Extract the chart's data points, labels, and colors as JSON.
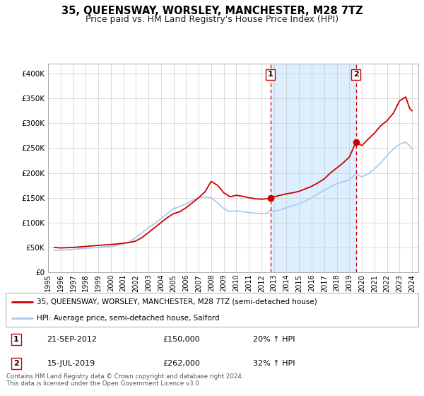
{
  "title": "35, QUEENSWAY, WORSLEY, MANCHESTER, M28 7TZ",
  "subtitle": "Price paid vs. HM Land Registry's House Price Index (HPI)",
  "legend_line1": "35, QUEENSWAY, WORSLEY, MANCHESTER, M28 7TZ (semi-detached house)",
  "legend_line2": "HPI: Average price, semi-detached house, Salford",
  "marker1_date": 2012.72,
  "marker1_price": 150000,
  "marker1_label": "1",
  "marker1_text": "21-SEP-2012",
  "marker1_val": "£150,000",
  "marker1_hpi": "20% ↑ HPI",
  "marker2_date": 2019.53,
  "marker2_price": 262000,
  "marker2_label": "2",
  "marker2_text": "15-JUL-2019",
  "marker2_val": "£262,000",
  "marker2_hpi": "32% ↑ HPI",
  "color_red": "#cc0000",
  "color_blue": "#aaccee",
  "color_blue_fill": "#ddeeff",
  "color_grid": "#cccccc",
  "background_color": "#ffffff",
  "ylim_max": 420000,
  "footer_text": "Contains HM Land Registry data © Crown copyright and database right 2024.\nThis data is licensed under the Open Government Licence v3.0.",
  "red_line_data": [
    [
      1995.5,
      50000
    ],
    [
      1996.0,
      49000
    ],
    [
      1996.5,
      49500
    ],
    [
      1997.0,
      50000
    ],
    [
      1997.5,
      51000
    ],
    [
      1998.0,
      52000
    ],
    [
      1998.5,
      53000
    ],
    [
      1999.0,
      54000
    ],
    [
      1999.5,
      55000
    ],
    [
      2000.0,
      56000
    ],
    [
      2000.5,
      57000
    ],
    [
      2001.0,
      58500
    ],
    [
      2001.5,
      60000
    ],
    [
      2002.0,
      63000
    ],
    [
      2002.5,
      70000
    ],
    [
      2003.0,
      80000
    ],
    [
      2003.5,
      90000
    ],
    [
      2004.0,
      100000
    ],
    [
      2004.5,
      110000
    ],
    [
      2005.0,
      118000
    ],
    [
      2005.5,
      122000
    ],
    [
      2006.0,
      130000
    ],
    [
      2006.5,
      140000
    ],
    [
      2007.0,
      150000
    ],
    [
      2007.5,
      162000
    ],
    [
      2008.0,
      183000
    ],
    [
      2008.5,
      175000
    ],
    [
      2009.0,
      160000
    ],
    [
      2009.5,
      152000
    ],
    [
      2010.0,
      155000
    ],
    [
      2010.5,
      153000
    ],
    [
      2011.0,
      150000
    ],
    [
      2011.5,
      148000
    ],
    [
      2012.0,
      147000
    ],
    [
      2012.5,
      148000
    ],
    [
      2012.72,
      150000
    ],
    [
      2013.0,
      152000
    ],
    [
      2013.5,
      155000
    ],
    [
      2014.0,
      158000
    ],
    [
      2014.5,
      160000
    ],
    [
      2015.0,
      163000
    ],
    [
      2015.5,
      168000
    ],
    [
      2016.0,
      173000
    ],
    [
      2016.5,
      180000
    ],
    [
      2017.0,
      188000
    ],
    [
      2017.5,
      200000
    ],
    [
      2018.0,
      210000
    ],
    [
      2018.5,
      220000
    ],
    [
      2019.0,
      232000
    ],
    [
      2019.53,
      262000
    ],
    [
      2020.0,
      255000
    ],
    [
      2020.5,
      268000
    ],
    [
      2021.0,
      280000
    ],
    [
      2021.5,
      295000
    ],
    [
      2022.0,
      305000
    ],
    [
      2022.5,
      320000
    ],
    [
      2023.0,
      345000
    ],
    [
      2023.5,
      353000
    ],
    [
      2023.8,
      330000
    ],
    [
      2024.0,
      325000
    ]
  ],
  "blue_line_data": [
    [
      1995.5,
      44000
    ],
    [
      1996.0,
      44500
    ],
    [
      1996.5,
      45000
    ],
    [
      1997.0,
      46000
    ],
    [
      1997.5,
      47000
    ],
    [
      1998.0,
      48000
    ],
    [
      1998.5,
      49000
    ],
    [
      1999.0,
      50000
    ],
    [
      1999.5,
      51000
    ],
    [
      2000.0,
      52000
    ],
    [
      2000.5,
      54000
    ],
    [
      2001.0,
      57000
    ],
    [
      2001.5,
      62000
    ],
    [
      2002.0,
      70000
    ],
    [
      2002.5,
      80000
    ],
    [
      2003.0,
      90000
    ],
    [
      2003.5,
      98000
    ],
    [
      2004.0,
      108000
    ],
    [
      2004.5,
      118000
    ],
    [
      2005.0,
      128000
    ],
    [
      2005.5,
      132000
    ],
    [
      2006.0,
      138000
    ],
    [
      2006.5,
      145000
    ],
    [
      2007.0,
      150000
    ],
    [
      2007.5,
      152000
    ],
    [
      2008.0,
      150000
    ],
    [
      2008.5,
      140000
    ],
    [
      2009.0,
      128000
    ],
    [
      2009.5,
      122000
    ],
    [
      2010.0,
      124000
    ],
    [
      2010.5,
      122000
    ],
    [
      2011.0,
      120000
    ],
    [
      2011.5,
      119000
    ],
    [
      2012.0,
      118000
    ],
    [
      2012.5,
      119000
    ],
    [
      2012.72,
      125000
    ],
    [
      2013.0,
      122000
    ],
    [
      2013.5,
      126000
    ],
    [
      2014.0,
      130000
    ],
    [
      2014.5,
      134000
    ],
    [
      2015.0,
      138000
    ],
    [
      2015.5,
      143000
    ],
    [
      2016.0,
      150000
    ],
    [
      2016.5,
      158000
    ],
    [
      2017.0,
      165000
    ],
    [
      2017.5,
      172000
    ],
    [
      2018.0,
      178000
    ],
    [
      2018.5,
      182000
    ],
    [
      2019.0,
      186000
    ],
    [
      2019.53,
      198000
    ],
    [
      2020.0,
      192000
    ],
    [
      2020.5,
      198000
    ],
    [
      2021.0,
      208000
    ],
    [
      2021.5,
      220000
    ],
    [
      2022.0,
      235000
    ],
    [
      2022.5,
      248000
    ],
    [
      2023.0,
      258000
    ],
    [
      2023.5,
      262000
    ],
    [
      2023.8,
      255000
    ],
    [
      2024.0,
      248000
    ]
  ]
}
